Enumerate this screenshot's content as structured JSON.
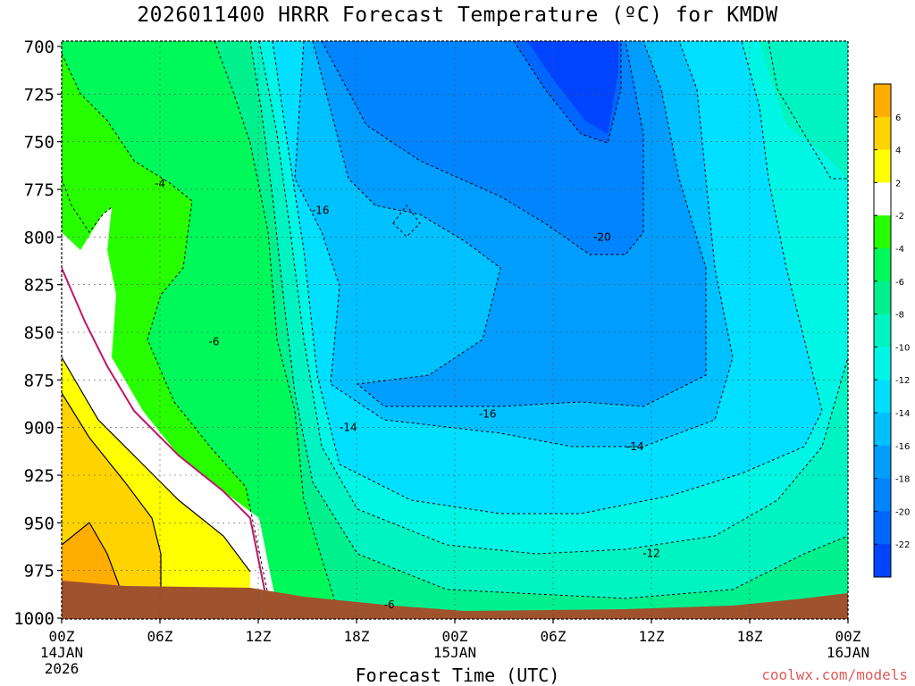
{
  "chart_data": {
    "type": "heatmap",
    "title": "2026011400 HRRR Forecast Temperature (ºC) for KMDW",
    "xlabel": "Forecast Time (UTC)",
    "credit": "coolwx.com/models",
    "y_ticks": [
      "700",
      "725",
      "750",
      "775",
      "800",
      "825",
      "850",
      "875",
      "900",
      "925",
      "950",
      "975",
      "1000"
    ],
    "x_ticks": [
      {
        "label": "00Z",
        "sub1": "14JAN",
        "sub2": "2026"
      },
      {
        "label": "06Z",
        "sub1": "",
        "sub2": ""
      },
      {
        "label": "12Z",
        "sub1": "",
        "sub2": ""
      },
      {
        "label": "18Z",
        "sub1": "",
        "sub2": ""
      },
      {
        "label": "00Z",
        "sub1": "15JAN",
        "sub2": ""
      },
      {
        "label": "06Z",
        "sub1": "",
        "sub2": ""
      },
      {
        "label": "12Z",
        "sub1": "",
        "sub2": ""
      },
      {
        "label": "18Z",
        "sub1": "",
        "sub2": ""
      },
      {
        "label": "00Z",
        "sub1": "16JAN",
        "sub2": ""
      }
    ],
    "colorbar": {
      "colors": [
        "#ffad00",
        "#ffd300",
        "#ffff00",
        "#ffffff",
        "#27ff00",
        "#00f95a",
        "#00f08e",
        "#00f4c1",
        "#00f6e4",
        "#00dfff",
        "#00c1ff",
        "#009dff",
        "#0084ff",
        "#0066ff",
        "#0044ff"
      ],
      "labels": [
        "6",
        "4",
        "2",
        "-2",
        "-4",
        "-6",
        "-8",
        "-10",
        "-12",
        "-14",
        "-16",
        "-18",
        "-20",
        "-22"
      ]
    },
    "contour_labels": [
      {
        "text": "-4",
        "hour": 6.0,
        "p": 772
      },
      {
        "text": "-6",
        "hour": 9.3,
        "p": 855
      },
      {
        "text": "-16",
        "hour": 15.8,
        "p": 786
      },
      {
        "text": "-20",
        "hour": 33.0,
        "p": 800
      },
      {
        "text": "-14",
        "hour": 17.5,
        "p": 900
      },
      {
        "text": "-16",
        "hour": 26.0,
        "p": 893
      },
      {
        "text": "-14",
        "hour": 35.0,
        "p": 910
      },
      {
        "text": "-12",
        "hour": 36.0,
        "p": 966
      },
      {
        "text": "-6",
        "hour": 20.0,
        "p": 993
      }
    ]
  }
}
